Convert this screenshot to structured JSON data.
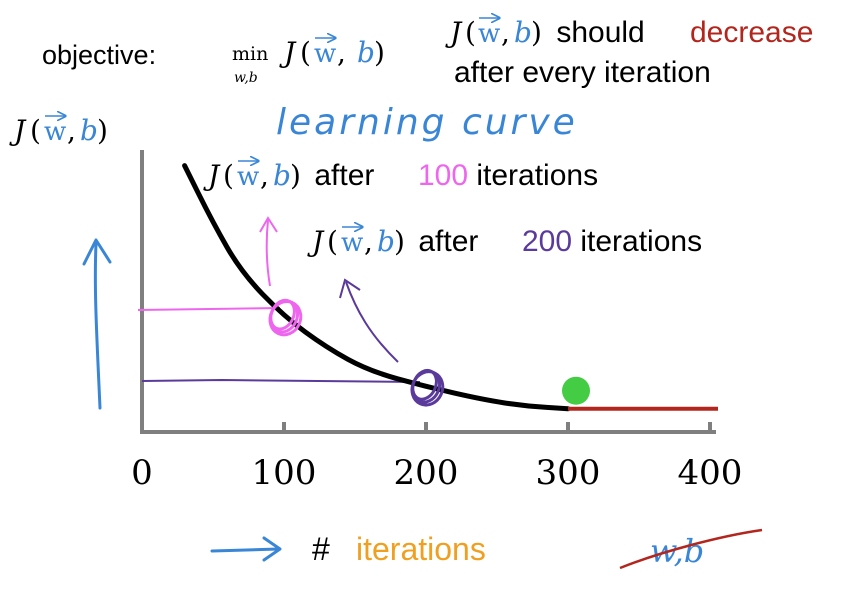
{
  "objective": {
    "prefix": "objective: ",
    "min": "min",
    "min_sub": "w,b",
    "J": "J",
    "open": "(",
    "w": "w",
    "comma": ", ",
    "b": "b",
    "close": ")"
  },
  "note": {
    "J": "J",
    "open": "(",
    "w": "w",
    "comma": ",",
    "b": "b",
    "close": ")",
    "should": " should ",
    "decrease": "decrease",
    "line2": "after every iteration"
  },
  "ylabel": {
    "J": "J",
    "open": "(",
    "w": "w",
    "comma": ",",
    "b": "b",
    "close": ")"
  },
  "handwritten_title": "learning curve",
  "annotation_100": {
    "J": "J",
    "open": "(",
    "w": "w",
    "comma": ",",
    "b": "b",
    "close": ")",
    "after": " after ",
    "num": "100",
    "rest": " iterations"
  },
  "annotation_200": {
    "J": "J",
    "open": "(",
    "w": "w",
    "comma": ",",
    "b": "b",
    "close": ")",
    "after": " after ",
    "num": "200",
    "rest": " iterations"
  },
  "x_ticks": [
    "0",
    "100",
    "200",
    "300",
    "400"
  ],
  "xlabel": {
    "hash": "# ",
    "word": "iterations"
  },
  "crossed_label": "w,b",
  "colors": {
    "curve": "#000000",
    "axis": "#7f7f7f",
    "blue": "#3a86d6",
    "pink": "#ee66ee",
    "purple": "#5a3a9a",
    "red": "#b3261e",
    "orange": "#f0a020",
    "green": "#44cc44"
  },
  "chart_data": {
    "type": "line",
    "x": [
      30,
      50,
      70,
      100,
      130,
      160,
      200,
      240,
      270,
      300
    ],
    "y": [
      0.94,
      0.72,
      0.53,
      0.36,
      0.24,
      0.15,
      0.09,
      0.04,
      0.015,
      0.005
    ],
    "xlim": [
      0,
      400
    ],
    "x_ticks": [
      0,
      100,
      200,
      300,
      400
    ],
    "flat_segment": {
      "x": [
        300,
        400
      ],
      "y": 0.005
    },
    "markers": [
      {
        "x": 100,
        "y": 0.36,
        "color": "pink"
      },
      {
        "x": 200,
        "y": 0.09,
        "color": "purple"
      },
      {
        "x": 300,
        "y": 0.005,
        "color": "green"
      }
    ]
  }
}
